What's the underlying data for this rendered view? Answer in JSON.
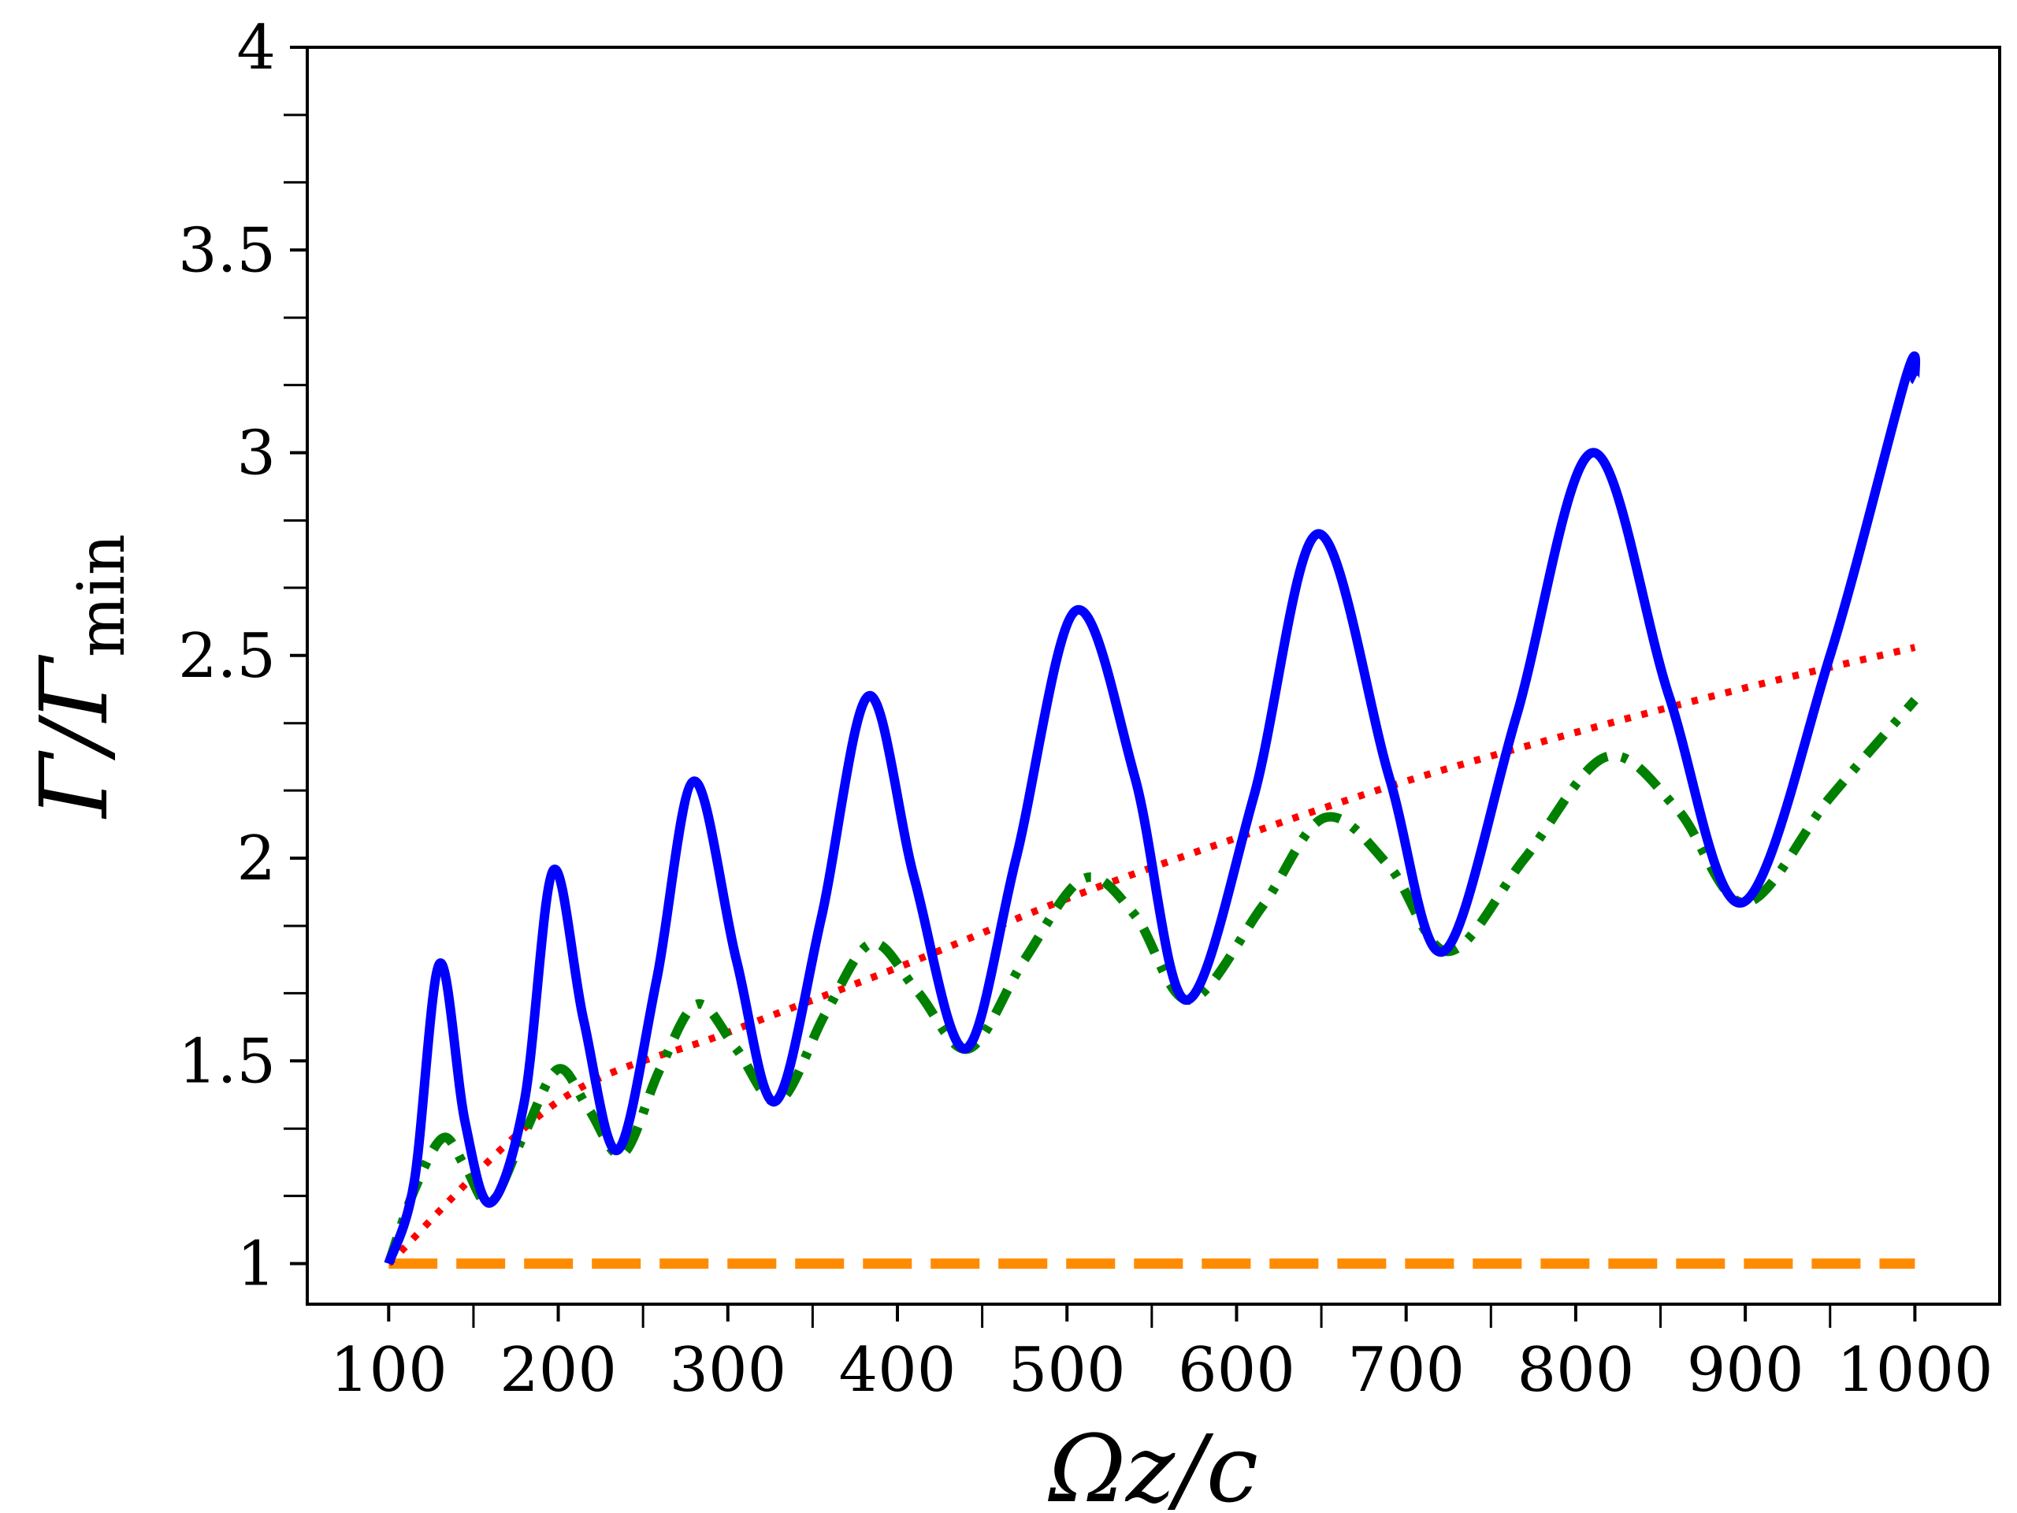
{
  "chart_data": {
    "type": "line",
    "xlabel": "Ωz/c",
    "ylabel": "Γ/Γ",
    "ylabel_subscript": "min",
    "xlim": [
      52,
      1050
    ],
    "ylim": [
      0.9,
      4.0
    ],
    "x_ticks": [
      100,
      200,
      300,
      400,
      500,
      600,
      700,
      800,
      900,
      1000
    ],
    "x_tick_labels": [
      "100",
      "200",
      "300",
      "400",
      "500",
      "600",
      "700",
      "800",
      "900",
      "1000"
    ],
    "y_ticks": [
      1,
      1.5,
      2,
      2.5,
      3,
      3.5,
      4
    ],
    "y_tick_labels": [
      "1",
      "1.5",
      "2",
      "2.5",
      "3",
      "3.5",
      "4"
    ],
    "x_minor_ticks": [
      150,
      250,
      350,
      450,
      550,
      650,
      750,
      850,
      950
    ],
    "y_minor_ticks": [
      1.167,
      1.333,
      1.667,
      1.833,
      2.167,
      2.333,
      2.667,
      2.833,
      3.167,
      3.333,
      3.667,
      3.833
    ],
    "grid": false,
    "legend": "none",
    "series": [
      {
        "style": "solid",
        "color": "#0000ff",
        "x": [
          100,
          115,
          130,
          145,
          160,
          180,
          197,
          215,
          235,
          258,
          280,
          305,
          328,
          355,
          383,
          410,
          440,
          470,
          505,
          540,
          570,
          610,
          648,
          690,
          722,
          765,
          810,
          855,
          898,
          950,
          995,
          1000
        ],
        "y": [
          1.0,
          1.2,
          1.74,
          1.35,
          1.15,
          1.4,
          1.97,
          1.6,
          1.28,
          1.7,
          2.19,
          1.75,
          1.4,
          1.85,
          2.4,
          1.95,
          1.53,
          2.0,
          2.61,
          2.2,
          1.65,
          2.15,
          2.8,
          2.2,
          1.77,
          2.35,
          3.0,
          2.4,
          1.89,
          2.5,
          3.19,
          3.18
        ]
      },
      {
        "style": "dashdot",
        "color": "#008000",
        "x": [
          100,
          115,
          132,
          145,
          160,
          180,
          200,
          218,
          238,
          260,
          282,
          305,
          330,
          358,
          385,
          412,
          442,
          475,
          510,
          540,
          572,
          615,
          652,
          690,
          725,
          770,
          818,
          860,
          900,
          950,
          1000
        ],
        "y": [
          1.0,
          1.18,
          1.31,
          1.24,
          1.15,
          1.32,
          1.48,
          1.38,
          1.27,
          1.48,
          1.64,
          1.53,
          1.4,
          1.62,
          1.79,
          1.67,
          1.53,
          1.75,
          1.95,
          1.86,
          1.65,
          1.88,
          2.1,
          1.98,
          1.77,
          2.0,
          2.25,
          2.12,
          1.89,
          2.15,
          2.39
        ]
      },
      {
        "style": "dotted",
        "color": "#ff0000",
        "x": [
          100,
          200,
          300,
          400,
          500,
          600,
          700,
          800,
          900,
          1000
        ],
        "y": [
          1.0,
          1.4,
          1.57,
          1.73,
          1.9,
          2.05,
          2.19,
          2.31,
          2.42,
          2.52
        ]
      },
      {
        "style": "dashed",
        "color": "#ff8c00",
        "x": [
          100,
          1000
        ],
        "y": [
          1.0,
          1.0
        ]
      }
    ]
  }
}
